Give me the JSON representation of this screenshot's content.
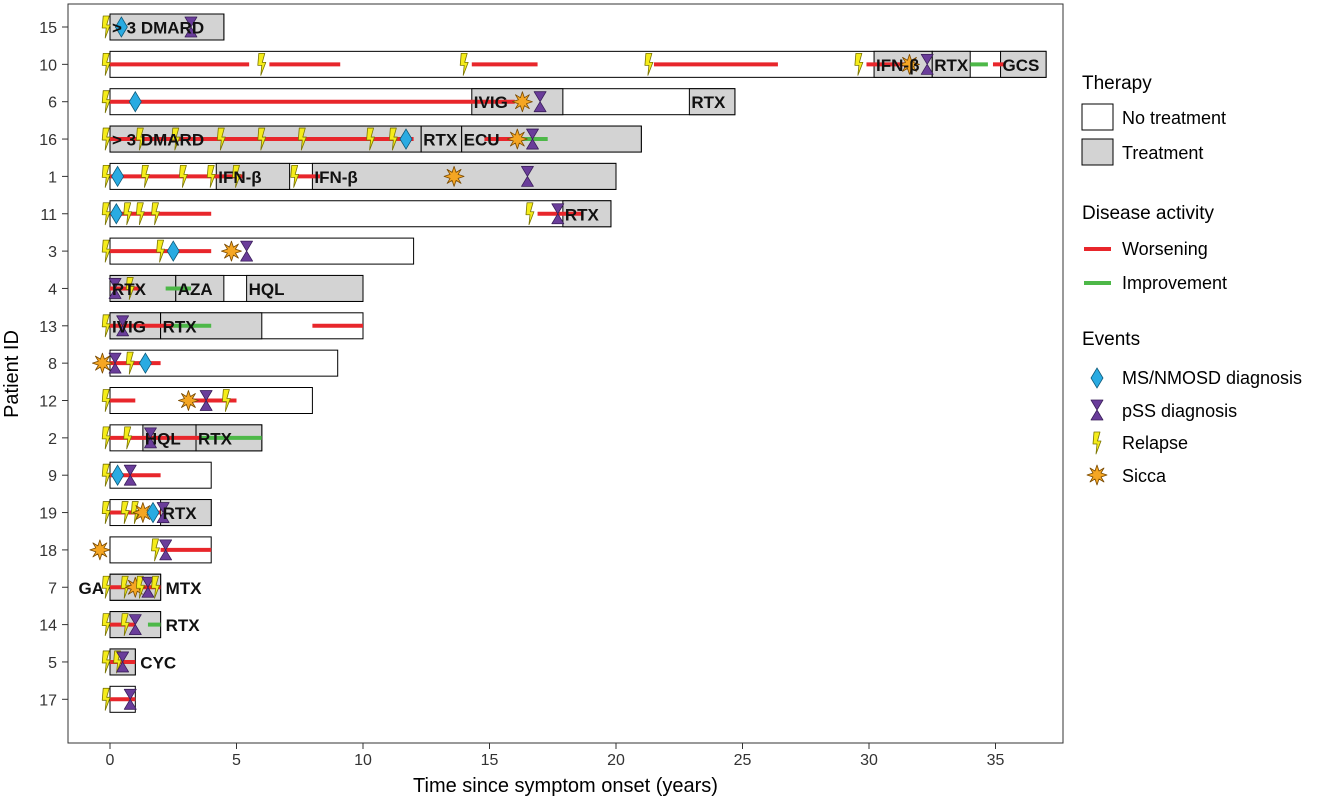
{
  "chart_data": {
    "type": "timeline",
    "xlabel": "Time since symptom onset (years)",
    "ylabel": "Patient ID",
    "xlim": [
      -1.5,
      37.7
    ],
    "xticks": [
      0,
      5,
      10,
      15,
      20,
      25,
      30,
      35
    ],
    "colors": {
      "no_treatment": "#ffffff",
      "treatment": "#d3d3d3",
      "worsening": "#e8262b",
      "improvement": "#4db848",
      "diagnosis_ms": "#29abe2",
      "diagnosis_pss": "#6a3d9a",
      "relapse": "#f5ec1a",
      "sicca": "#f5a623"
    },
    "legend": {
      "therapy_title": "Therapy",
      "therapy_items": [
        "No treatment",
        "Treatment"
      ],
      "activity_title": "Disease activity",
      "activity_items": [
        "Worsening",
        "Improvement"
      ],
      "events_title": "Events",
      "events_items": [
        "MS/NMOSD diagnosis",
        "pSS diagnosis",
        "Relapse",
        "Sicca"
      ]
    },
    "patients": [
      {
        "id": "15",
        "end": 4.5,
        "treatments": [
          {
            "start": 0,
            "end": 4.5,
            "label": "> 3 DMARD"
          }
        ],
        "activity": [],
        "events": [
          {
            "type": "relapse",
            "t": -0.15
          },
          {
            "type": "ms",
            "t": 0.45
          },
          {
            "type": "pss",
            "t": 3.2
          }
        ]
      },
      {
        "id": "10",
        "end": 37.0,
        "treatments": [
          {
            "start": 30.2,
            "end": 32.5,
            "label": "IFN-β"
          },
          {
            "start": 32.5,
            "end": 34.0,
            "label": "RTX"
          },
          {
            "start": 35.2,
            "end": 37.0,
            "label": "GCS"
          }
        ],
        "activity": [
          {
            "kind": "worsening",
            "start": 0,
            "end": 5.5
          },
          {
            "kind": "worsening",
            "start": 6.3,
            "end": 9.1
          },
          {
            "kind": "worsening",
            "start": 14.3,
            "end": 16.9
          },
          {
            "kind": "worsening",
            "start": 21.5,
            "end": 26.4
          },
          {
            "kind": "worsening",
            "start": 29.9,
            "end": 31.6
          },
          {
            "kind": "improvement",
            "start": 34.0,
            "end": 34.7
          },
          {
            "kind": "worsening",
            "start": 34.9,
            "end": 35.4
          }
        ],
        "events": [
          {
            "type": "relapse",
            "t": -0.15
          },
          {
            "type": "relapse",
            "t": 6.0
          },
          {
            "type": "relapse",
            "t": 14.0
          },
          {
            "type": "relapse",
            "t": 21.3
          },
          {
            "type": "relapse",
            "t": 29.6
          },
          {
            "type": "sicca",
            "t": 31.6
          },
          {
            "type": "pss",
            "t": 32.3
          }
        ]
      },
      {
        "id": "6",
        "end": 24.7,
        "treatments": [
          {
            "start": 14.3,
            "end": 17.9,
            "label": "IVIG"
          },
          {
            "start": 22.9,
            "end": 24.7,
            "label": "RTX"
          }
        ],
        "activity": [
          {
            "kind": "worsening",
            "start": 0,
            "end": 16.0
          }
        ],
        "events": [
          {
            "type": "relapse",
            "t": -0.15
          },
          {
            "type": "ms",
            "t": 1.0
          },
          {
            "type": "sicca",
            "t": 16.3
          },
          {
            "type": "pss",
            "t": 17.0
          }
        ]
      },
      {
        "id": "16",
        "end": 21.0,
        "treatments": [
          {
            "start": 0,
            "end": 12.3,
            "label": "> 3 DMARD"
          },
          {
            "start": 12.3,
            "end": 13.9,
            "label": "RTX"
          },
          {
            "start": 13.9,
            "end": 21.0,
            "label": "ECU"
          }
        ],
        "activity": [
          {
            "kind": "worsening",
            "start": 0,
            "end": 12.0
          },
          {
            "kind": "worsening",
            "start": 14.8,
            "end": 16.0
          },
          {
            "kind": "improvement",
            "start": 16.0,
            "end": 17.3
          }
        ],
        "events": [
          {
            "type": "relapse",
            "t": -0.15
          },
          {
            "type": "relapse",
            "t": 1.2
          },
          {
            "type": "relapse",
            "t": 2.6
          },
          {
            "type": "relapse",
            "t": 4.4
          },
          {
            "type": "relapse",
            "t": 6.0
          },
          {
            "type": "relapse",
            "t": 7.6
          },
          {
            "type": "relapse",
            "t": 10.3
          },
          {
            "type": "relapse",
            "t": 11.2
          },
          {
            "type": "ms",
            "t": 11.7
          },
          {
            "type": "sicca",
            "t": 16.1
          },
          {
            "type": "pss",
            "t": 16.7
          }
        ]
      },
      {
        "id": "1",
        "end": 20.0,
        "treatments": [
          {
            "start": 4.2,
            "end": 7.1,
            "label": "IFN-β"
          },
          {
            "start": 8.0,
            "end": 20.0,
            "label": "IFN-β"
          }
        ],
        "activity": [
          {
            "kind": "worsening",
            "start": 0,
            "end": 5.3
          },
          {
            "kind": "worsening",
            "start": 7.3,
            "end": 8.3
          }
        ],
        "events": [
          {
            "type": "relapse",
            "t": -0.15
          },
          {
            "type": "ms",
            "t": 0.3
          },
          {
            "type": "relapse",
            "t": 1.4
          },
          {
            "type": "relapse",
            "t": 2.9
          },
          {
            "type": "relapse",
            "t": 4.0
          },
          {
            "type": "relapse",
            "t": 5.0
          },
          {
            "type": "relapse",
            "t": 7.3
          },
          {
            "type": "sicca",
            "t": 13.6
          },
          {
            "type": "pss",
            "t": 16.5
          }
        ]
      },
      {
        "id": "11",
        "end": 19.8,
        "treatments": [
          {
            "start": 17.9,
            "end": 19.8,
            "label": "RTX"
          }
        ],
        "activity": [
          {
            "kind": "worsening",
            "start": 0,
            "end": 4.0
          },
          {
            "kind": "worsening",
            "start": 16.9,
            "end": 18.7
          }
        ],
        "events": [
          {
            "type": "relapse",
            "t": -0.15
          },
          {
            "type": "ms",
            "t": 0.25
          },
          {
            "type": "relapse",
            "t": 0.7
          },
          {
            "type": "relapse",
            "t": 1.2
          },
          {
            "type": "relapse",
            "t": 1.8
          },
          {
            "type": "relapse",
            "t": 16.6
          },
          {
            "type": "pss",
            "t": 17.7
          }
        ]
      },
      {
        "id": "3",
        "end": 12.0,
        "treatments": [],
        "activity": [
          {
            "kind": "worsening",
            "start": 0,
            "end": 4.0
          }
        ],
        "events": [
          {
            "type": "relapse",
            "t": -0.15
          },
          {
            "type": "relapse",
            "t": 2.0
          },
          {
            "type": "ms",
            "t": 2.5
          },
          {
            "type": "sicca",
            "t": 4.8
          },
          {
            "type": "pss",
            "t": 5.4
          }
        ]
      },
      {
        "id": "4",
        "end": 10.0,
        "treatments": [
          {
            "start": 0,
            "end": 2.6,
            "label": "RTX"
          },
          {
            "start": 2.6,
            "end": 4.5,
            "label": "AZA"
          },
          {
            "start": 5.4,
            "end": 10.0,
            "label": "HQL"
          }
        ],
        "activity": [
          {
            "kind": "worsening",
            "start": 0,
            "end": 1.2
          },
          {
            "kind": "improvement",
            "start": 2.2,
            "end": 3.2
          }
        ],
        "events": [
          {
            "type": "pss",
            "t": 0.2
          },
          {
            "type": "relapse",
            "t": 0.8
          }
        ]
      },
      {
        "id": "13",
        "end": 10.0,
        "treatments": [
          {
            "start": 0,
            "end": 2.0,
            "label": "IVIG"
          },
          {
            "start": 2.0,
            "end": 6.0,
            "label": "RTX"
          }
        ],
        "activity": [
          {
            "kind": "worsening",
            "start": 0,
            "end": 2.5
          },
          {
            "kind": "improvement",
            "start": 2.5,
            "end": 4.0
          },
          {
            "kind": "worsening",
            "start": 8.0,
            "end": 10.0
          }
        ],
        "events": [
          {
            "type": "relapse",
            "t": -0.15
          },
          {
            "type": "pss",
            "t": 0.5
          }
        ]
      },
      {
        "id": "8",
        "end": 9.0,
        "treatments": [],
        "activity": [
          {
            "kind": "worsening",
            "start": 0,
            "end": 2.0
          }
        ],
        "events": [
          {
            "type": "sicca",
            "t": -0.3
          },
          {
            "type": "pss",
            "t": 0.2
          },
          {
            "type": "relapse",
            "t": 0.8
          },
          {
            "type": "ms",
            "t": 1.4
          }
        ]
      },
      {
        "id": "12",
        "end": 8.0,
        "treatments": [],
        "activity": [
          {
            "kind": "worsening",
            "start": 0,
            "end": 1.0
          },
          {
            "kind": "worsening",
            "start": 3.3,
            "end": 5.0
          }
        ],
        "events": [
          {
            "type": "relapse",
            "t": -0.15
          },
          {
            "type": "sicca",
            "t": 3.1
          },
          {
            "type": "pss",
            "t": 3.8
          },
          {
            "type": "relapse",
            "t": 4.6
          }
        ]
      },
      {
        "id": "2",
        "end": 6.0,
        "treatments": [
          {
            "start": 1.3,
            "end": 3.4,
            "label": "HQL"
          },
          {
            "start": 3.4,
            "end": 6.0,
            "label": "RTX"
          }
        ],
        "activity": [
          {
            "kind": "worsening",
            "start": 0,
            "end": 3.6
          },
          {
            "kind": "improvement",
            "start": 3.6,
            "end": 6.0
          }
        ],
        "events": [
          {
            "type": "relapse",
            "t": -0.15
          },
          {
            "type": "relapse",
            "t": 0.7
          },
          {
            "type": "pss",
            "t": 1.6
          }
        ]
      },
      {
        "id": "9",
        "end": 4.0,
        "treatments": [],
        "activity": [
          {
            "kind": "worsening",
            "start": 0,
            "end": 2.0
          }
        ],
        "events": [
          {
            "type": "relapse",
            "t": -0.15
          },
          {
            "type": "ms",
            "t": 0.3
          },
          {
            "type": "pss",
            "t": 0.8
          }
        ]
      },
      {
        "id": "19",
        "end": 4.0,
        "treatments": [
          {
            "start": 2.0,
            "end": 4.0,
            "label": "RTX"
          }
        ],
        "activity": [
          {
            "kind": "worsening",
            "start": 0,
            "end": 2.0
          }
        ],
        "events": [
          {
            "type": "relapse",
            "t": -0.15
          },
          {
            "type": "relapse",
            "t": 0.6
          },
          {
            "type": "relapse",
            "t": 1.0
          },
          {
            "type": "sicca",
            "t": 1.3
          },
          {
            "type": "ms",
            "t": 1.7
          },
          {
            "type": "pss",
            "t": 2.1
          }
        ]
      },
      {
        "id": "18",
        "end": 4.0,
        "treatments": [],
        "activity": [
          {
            "kind": "worsening",
            "start": 2.0,
            "end": 4.0
          }
        ],
        "events": [
          {
            "type": "sicca",
            "t": -0.4
          },
          {
            "type": "relapse",
            "t": 1.8
          },
          {
            "type": "pss",
            "t": 2.2
          }
        ]
      },
      {
        "id": "7",
        "end": 2.0,
        "treatments": [
          {
            "start": 0,
            "end": 2.0,
            "label": "GA",
            "label_pos": "left"
          },
          {
            "start": 0,
            "end": 2.0,
            "label": "MTX",
            "label_pos": "right"
          }
        ],
        "activity": [
          {
            "kind": "worsening",
            "start": 0,
            "end": 2.0
          }
        ],
        "events": [
          {
            "type": "relapse",
            "t": -0.15
          },
          {
            "type": "relapse",
            "t": 0.6
          },
          {
            "type": "sicca",
            "t": 1.0
          },
          {
            "type": "relapse",
            "t": 1.2
          },
          {
            "type": "pss",
            "t": 1.5
          },
          {
            "type": "relapse",
            "t": 1.8
          }
        ]
      },
      {
        "id": "14",
        "end": 2.0,
        "treatments": [
          {
            "start": 0,
            "end": 2.0,
            "label": "RTX",
            "label_pos": "right"
          }
        ],
        "activity": [
          {
            "kind": "worsening",
            "start": 0,
            "end": 1.0
          },
          {
            "kind": "improvement",
            "start": 1.5,
            "end": 2.0
          }
        ],
        "events": [
          {
            "type": "relapse",
            "t": -0.15
          },
          {
            "type": "relapse",
            "t": 0.6
          },
          {
            "type": "pss",
            "t": 1.0
          }
        ]
      },
      {
        "id": "5",
        "end": 1.0,
        "treatments": [
          {
            "start": 0,
            "end": 1.0,
            "label": "CYC",
            "label_pos": "right"
          }
        ],
        "activity": [
          {
            "kind": "worsening",
            "start": 0,
            "end": 1.0
          }
        ],
        "events": [
          {
            "type": "relapse",
            "t": -0.15
          },
          {
            "type": "relapse",
            "t": 0.3
          },
          {
            "type": "pss",
            "t": 0.5
          }
        ]
      },
      {
        "id": "17",
        "end": 1.0,
        "treatments": [],
        "activity": [
          {
            "kind": "worsening",
            "start": 0,
            "end": 1.0
          }
        ],
        "events": [
          {
            "type": "relapse",
            "t": -0.15
          },
          {
            "type": "pss",
            "t": 0.8
          }
        ]
      }
    ]
  }
}
